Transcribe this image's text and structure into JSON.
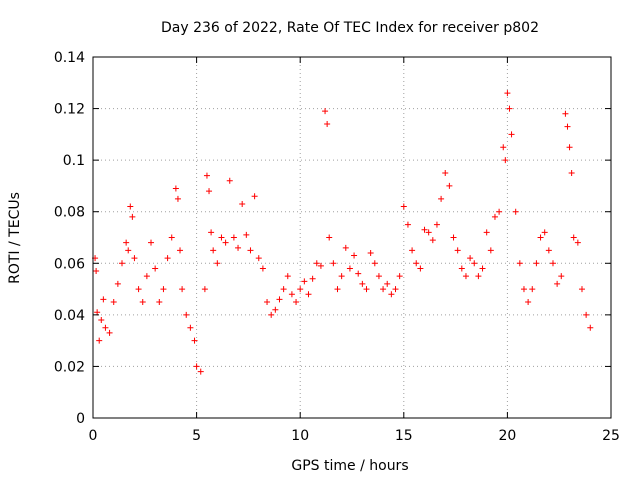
{
  "chart_data": {
    "type": "scatter",
    "title": "Day 236 of 2022, Rate Of TEC Index for receiver p802",
    "xlabel": "GPS time / hours",
    "ylabel": "ROTI / TECUs",
    "xlim": [
      0,
      25
    ],
    "ylim": [
      0,
      0.14
    ],
    "xticks": [
      0,
      5,
      10,
      15,
      20,
      25
    ],
    "xtick_labels": [
      "0",
      "5",
      "10",
      "15",
      "20",
      "25"
    ],
    "yticks": [
      0,
      0.02,
      0.04,
      0.06,
      0.08,
      0.1,
      0.12,
      0.14
    ],
    "ytick_labels": [
      "0",
      "0.02",
      "0.04",
      "0.06",
      "0.08",
      "0.1",
      "0.12",
      "0.14"
    ],
    "grid": true,
    "marker": "+",
    "color": "#ff0000",
    "series": [
      {
        "x": [
          0.1,
          0.15,
          0.2,
          0.3,
          0.4,
          0.5,
          0.6,
          0.8,
          1.0,
          1.2,
          1.4,
          1.6,
          1.7,
          1.8,
          1.9,
          2.0,
          2.2,
          2.4,
          2.6,
          2.8,
          3.0,
          3.2,
          3.4,
          3.6,
          3.8,
          4.0,
          4.1,
          4.2,
          4.3,
          4.5,
          4.7,
          4.9,
          5.0,
          5.2,
          5.4,
          5.5,
          5.6,
          5.7,
          5.8,
          6.0,
          6.2,
          6.4,
          6.6,
          6.8,
          7.0,
          7.2,
          7.4,
          7.6,
          7.8,
          8.0,
          8.2,
          8.4,
          8.6,
          8.8,
          9.0,
          9.2,
          9.4,
          9.6,
          9.8,
          10.0,
          10.2,
          10.4,
          10.6,
          10.8,
          11.0,
          11.2,
          11.3,
          11.4,
          11.6,
          11.8,
          12.0,
          12.2,
          12.4,
          12.6,
          12.8,
          13.0,
          13.2,
          13.4,
          13.6,
          13.8,
          14.0,
          14.2,
          14.4,
          14.6,
          14.8,
          15.0,
          15.2,
          15.4,
          15.6,
          15.8,
          16.0,
          16.2,
          16.4,
          16.6,
          16.8,
          17.0,
          17.2,
          17.4,
          17.6,
          17.8,
          18.0,
          18.2,
          18.4,
          18.6,
          18.8,
          19.0,
          19.2,
          19.4,
          19.6,
          19.8,
          19.9,
          20.0,
          20.1,
          20.2,
          20.4,
          20.6,
          20.8,
          21.0,
          21.2,
          21.4,
          21.6,
          21.8,
          22.0,
          22.2,
          22.4,
          22.6,
          22.8,
          22.9,
          23.0,
          23.1,
          23.2,
          23.4,
          23.6,
          23.8,
          24.0
        ],
        "y": [
          0.062,
          0.057,
          0.041,
          0.03,
          0.038,
          0.046,
          0.035,
          0.033,
          0.045,
          0.052,
          0.06,
          0.068,
          0.065,
          0.082,
          0.078,
          0.062,
          0.05,
          0.045,
          0.055,
          0.068,
          0.058,
          0.045,
          0.05,
          0.062,
          0.07,
          0.089,
          0.085,
          0.065,
          0.05,
          0.04,
          0.035,
          0.03,
          0.02,
          0.018,
          0.05,
          0.094,
          0.088,
          0.072,
          0.065,
          0.06,
          0.07,
          0.068,
          0.092,
          0.07,
          0.066,
          0.083,
          0.071,
          0.065,
          0.086,
          0.062,
          0.058,
          0.045,
          0.04,
          0.042,
          0.046,
          0.05,
          0.055,
          0.048,
          0.045,
          0.05,
          0.053,
          0.048,
          0.054,
          0.06,
          0.059,
          0.119,
          0.114,
          0.07,
          0.06,
          0.05,
          0.055,
          0.066,
          0.058,
          0.063,
          0.056,
          0.052,
          0.05,
          0.064,
          0.06,
          0.055,
          0.05,
          0.052,
          0.048,
          0.05,
          0.055,
          0.082,
          0.075,
          0.065,
          0.06,
          0.058,
          0.073,
          0.072,
          0.069,
          0.075,
          0.085,
          0.095,
          0.09,
          0.07,
          0.065,
          0.058,
          0.055,
          0.062,
          0.06,
          0.055,
          0.058,
          0.072,
          0.065,
          0.078,
          0.08,
          0.105,
          0.1,
          0.126,
          0.12,
          0.11,
          0.08,
          0.06,
          0.05,
          0.045,
          0.05,
          0.06,
          0.07,
          0.072,
          0.065,
          0.06,
          0.052,
          0.055,
          0.118,
          0.113,
          0.105,
          0.095,
          0.07,
          0.068,
          0.05,
          0.04,
          0.035
        ]
      }
    ]
  }
}
